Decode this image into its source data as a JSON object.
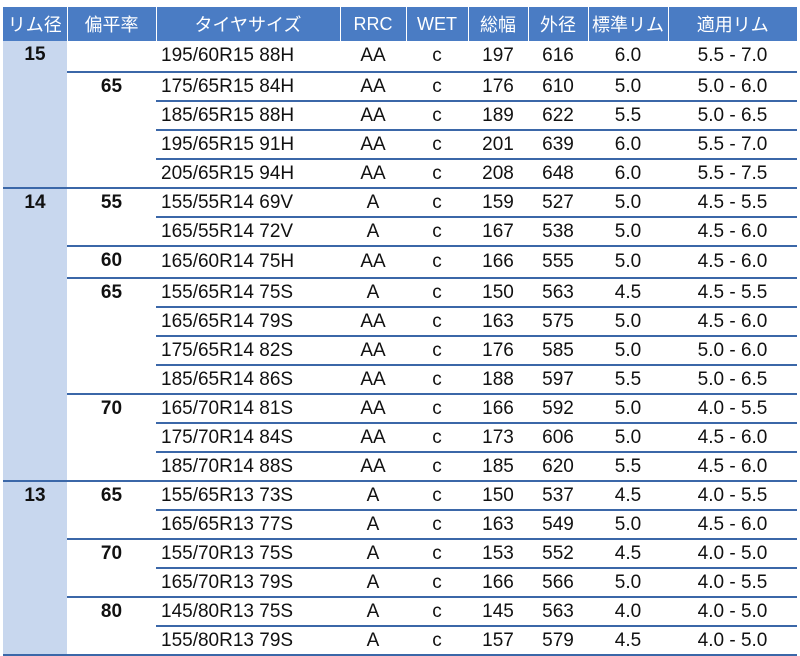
{
  "headers": [
    "リム径",
    "偏平率",
    "タイヤサイズ",
    "RRC",
    "WET",
    "総幅",
    "外径",
    "標準リム",
    "適用リム"
  ],
  "rim_groups": [
    {
      "rim": "15",
      "aspects": [
        {
          "aspect": "",
          "rows": [
            [
              "195/60R15 88H",
              "AA",
              "c",
              "197",
              "616",
              "6.0",
              "5.5 - 7.0"
            ]
          ]
        },
        {
          "aspect": "65",
          "rows": [
            [
              "175/65R15 84H",
              "AA",
              "c",
              "176",
              "610",
              "5.0",
              "5.0 - 6.0"
            ],
            [
              "185/65R15 88H",
              "AA",
              "c",
              "189",
              "622",
              "5.5",
              "5.0 - 6.5"
            ],
            [
              "195/65R15 91H",
              "AA",
              "c",
              "201",
              "639",
              "6.0",
              "5.5 - 7.0"
            ],
            [
              "205/65R15 94H",
              "AA",
              "c",
              "208",
              "648",
              "6.0",
              "5.5 - 7.5"
            ]
          ]
        }
      ]
    },
    {
      "rim": "14",
      "aspects": [
        {
          "aspect": "55",
          "rows": [
            [
              "155/55R14 69V",
              "A",
              "c",
              "159",
              "527",
              "5.0",
              "4.5 - 5.5"
            ],
            [
              "165/55R14 72V",
              "A",
              "c",
              "167",
              "538",
              "5.0",
              "4.5 - 6.0"
            ]
          ]
        },
        {
          "aspect": "60",
          "rows": [
            [
              "165/60R14 75H",
              "AA",
              "c",
              "166",
              "555",
              "5.0",
              "4.5 - 6.0"
            ]
          ]
        },
        {
          "aspect": "65",
          "rows": [
            [
              "155/65R14 75S",
              "A",
              "c",
              "150",
              "563",
              "4.5",
              "4.5 - 5.5"
            ],
            [
              "165/65R14 79S",
              "AA",
              "c",
              "163",
              "575",
              "5.0",
              "4.5 - 6.0"
            ],
            [
              "175/65R14 82S",
              "AA",
              "c",
              "176",
              "585",
              "5.0",
              "5.0 - 6.0"
            ],
            [
              "185/65R14 86S",
              "AA",
              "c",
              "188",
              "597",
              "5.5",
              "5.0 - 6.5"
            ]
          ]
        },
        {
          "aspect": "70",
          "rows": [
            [
              "165/70R14 81S",
              "AA",
              "c",
              "166",
              "592",
              "5.0",
              "4.0 - 5.5"
            ],
            [
              "175/70R14 84S",
              "AA",
              "c",
              "173",
              "606",
              "5.0",
              "4.5 - 6.0"
            ],
            [
              "185/70R14 88S",
              "AA",
              "c",
              "185",
              "620",
              "5.5",
              "4.5 - 6.0"
            ]
          ]
        }
      ]
    },
    {
      "rim": "13",
      "aspects": [
        {
          "aspect": "65",
          "rows": [
            [
              "155/65R13 73S",
              "A",
              "c",
              "150",
              "537",
              "4.5",
              "4.0 - 5.5"
            ],
            [
              "165/65R13 77S",
              "A",
              "c",
              "163",
              "549",
              "5.0",
              "4.5 - 6.0"
            ]
          ]
        },
        {
          "aspect": "70",
          "rows": [
            [
              "155/70R13 75S",
              "A",
              "c",
              "153",
              "552",
              "4.5",
              "4.0 - 5.0"
            ],
            [
              "165/70R13 79S",
              "A",
              "c",
              "166",
              "566",
              "5.0",
              "4.0 - 5.5"
            ]
          ]
        },
        {
          "aspect": "80",
          "rows": [
            [
              "145/80R13 75S",
              "A",
              "c",
              "145",
              "563",
              "4.0",
              "4.0 - 5.0"
            ],
            [
              "155/80R13 79S",
              "A",
              "c",
              "157",
              "579",
              "4.5",
              "4.0 - 5.0"
            ]
          ]
        }
      ]
    }
  ],
  "colors": {
    "header_bg": "#4a7cc4",
    "rim_bg": "#c8d7ee",
    "rule": "#3b67a8"
  }
}
